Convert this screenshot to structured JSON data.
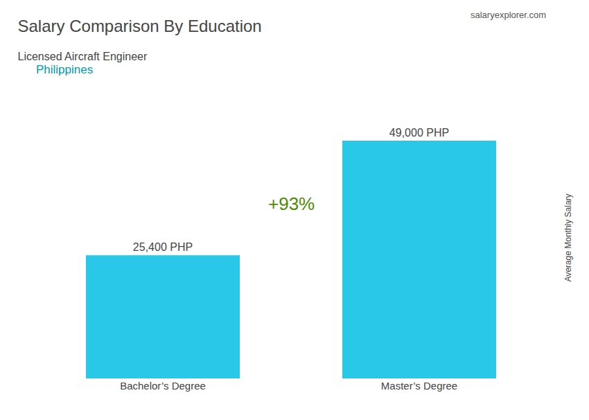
{
  "chart_data": {
    "type": "bar",
    "title": "Salary Comparison By Education",
    "subtitle": "Licensed Aircraft Engineer",
    "ylabel": "Average Monthly Salary",
    "annotations": [
      "Philippines",
      "salaryexplorer.com",
      "+93%"
    ],
    "categories": [
      "Bachelor’s Degree",
      "Master’s Degree"
    ],
    "values": [
      25400,
      49000
    ],
    "value_labels": [
      "25,400 PHP",
      "49,000 PHP"
    ],
    "data_labels": true,
    "color": "#29c8e8",
    "ylim": [
      0,
      58000
    ],
    "grid": false,
    "tick_labels": "x"
  }
}
